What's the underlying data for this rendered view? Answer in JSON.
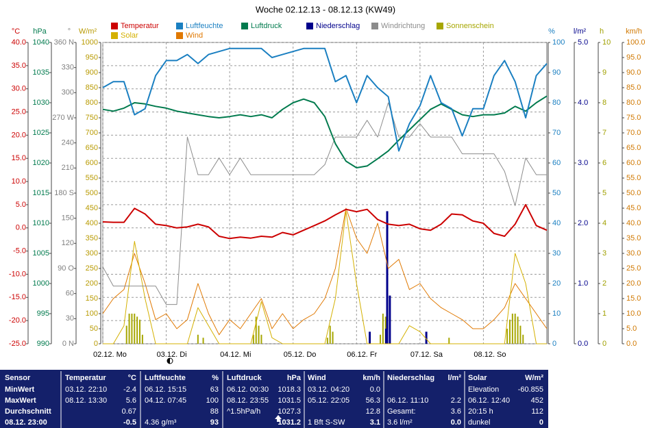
{
  "chart_data": {
    "type": "line",
    "title": "Woche 02.12.13 - 08.12.13 (KW49)",
    "xlim": [
      0,
      168
    ],
    "xticks": [
      {
        "value": 0,
        "label": "02.12. Mo"
      },
      {
        "value": 24,
        "label": "03.12. Di"
      },
      {
        "value": 48,
        "label": "04.12. Mi"
      },
      {
        "value": 72,
        "label": "05.12. Do"
      },
      {
        "value": 96,
        "label": "06.12. Fr"
      },
      {
        "value": 120,
        "label": "07.12. Sa"
      },
      {
        "value": 144,
        "label": "08.12. So"
      }
    ],
    "grid": true,
    "axes": [
      {
        "label": "°C",
        "color": "#cc0000",
        "side": "left",
        "ylim": [
          -25,
          40
        ],
        "yticks": [
          {
            "value": 40,
            "label": "40.0"
          },
          {
            "value": 35,
            "label": "35.0"
          },
          {
            "value": 30,
            "label": "30.0"
          },
          {
            "value": 25,
            "label": "25.0"
          },
          {
            "value": 20,
            "label": "20.0"
          },
          {
            "value": 15,
            "label": "15.0"
          },
          {
            "value": 10,
            "label": "10.0"
          },
          {
            "value": 5,
            "label": "5.0"
          },
          {
            "value": 0,
            "label": "0.0"
          },
          {
            "value": -5,
            "label": "-5.0"
          },
          {
            "value": -10,
            "label": "-10.0"
          },
          {
            "value": -15,
            "label": "-15.0"
          },
          {
            "value": -20,
            "label": "-20.0"
          },
          {
            "value": -25,
            "label": "-25.0"
          }
        ]
      },
      {
        "label": "hPa",
        "color": "#007a4d",
        "side": "left",
        "ylim": [
          990,
          1040
        ],
        "yticks": [
          1040,
          1035,
          1030,
          1025,
          1020,
          1015,
          1010,
          1005,
          1000,
          995,
          990
        ]
      },
      {
        "label": "°",
        "color": "#808080",
        "side": "left",
        "ylim": [
          0,
          360
        ],
        "yticks": [
          {
            "value": 360,
            "label": "360 N"
          },
          330,
          300,
          {
            "value": 270,
            "label": "270 W"
          },
          240,
          210,
          {
            "value": 180,
            "label": "180 S"
          },
          150,
          120,
          {
            "value": 90,
            "label": "90 O"
          },
          60,
          30,
          {
            "value": 0,
            "label": "0 N"
          }
        ]
      },
      {
        "label": "W/m²",
        "color": "#b89a00",
        "side": "left",
        "ylim": [
          0,
          1000
        ],
        "yticks": [
          1000,
          950,
          900,
          850,
          800,
          750,
          700,
          650,
          600,
          550,
          500,
          450,
          400,
          350,
          300,
          250,
          200,
          150,
          100,
          50,
          0
        ]
      },
      {
        "label": "%",
        "color": "#1a7fc1",
        "side": "right",
        "ylim": [
          0,
          100
        ],
        "yticks": [
          100,
          90,
          80,
          70,
          60,
          50,
          40,
          30,
          20,
          10,
          0
        ]
      },
      {
        "label": "l/m²",
        "color": "#00008b",
        "side": "right",
        "ylim": [
          0,
          5
        ],
        "yticks": [
          {
            "value": 5,
            "label": "5.0"
          },
          {
            "value": 4,
            "label": "4.0"
          },
          {
            "value": 3,
            "label": "3.0"
          },
          {
            "value": 2,
            "label": "2.0"
          },
          {
            "value": 1,
            "label": "1.0"
          },
          {
            "value": 0,
            "label": "0.0"
          }
        ]
      },
      {
        "label": "h",
        "color": "#a0a000",
        "side": "right",
        "ylim": [
          0,
          10
        ],
        "yticks": [
          10,
          9,
          8,
          7,
          6,
          5,
          4,
          3,
          2,
          1,
          0
        ]
      },
      {
        "label": "km/h",
        "color": "#d07800",
        "side": "right",
        "ylim": [
          0,
          100
        ],
        "yticks": [
          {
            "value": 100,
            "label": "100.0"
          },
          {
            "value": 95,
            "label": "95.0"
          },
          {
            "value": 90,
            "label": "90.0"
          },
          {
            "value": 85,
            "label": "85.0"
          },
          {
            "value": 80,
            "label": "80.0"
          },
          {
            "value": 75,
            "label": "75.0"
          },
          {
            "value": 70,
            "label": "70.0"
          },
          {
            "value": 65,
            "label": "65.0"
          },
          {
            "value": 60,
            "label": "60.0"
          },
          {
            "value": 55,
            "label": "55.0"
          },
          {
            "value": 50,
            "label": "50.0"
          },
          {
            "value": 45,
            "label": "45.0"
          },
          {
            "value": 40,
            "label": "40.0"
          },
          {
            "value": 35,
            "label": "35.0"
          },
          {
            "value": 30,
            "label": "30.0"
          },
          {
            "value": 25,
            "label": "25.0"
          },
          {
            "value": 20,
            "label": "20.0"
          },
          {
            "value": 15,
            "label": "15.0"
          },
          {
            "value": 10,
            "label": "10.0"
          },
          {
            "value": 5,
            "label": "5.0"
          },
          {
            "value": 0,
            "label": "0.0"
          }
        ]
      }
    ],
    "x": [
      0,
      4,
      8,
      12,
      16,
      20,
      24,
      28,
      32,
      36,
      40,
      44,
      48,
      52,
      56,
      60,
      64,
      68,
      72,
      76,
      80,
      84,
      88,
      92,
      96,
      100,
      104,
      108,
      112,
      116,
      120,
      124,
      128,
      132,
      136,
      140,
      144,
      148,
      152,
      156,
      160,
      164,
      168
    ],
    "series": [
      {
        "name": "Temperatur",
        "color": "#cc0000",
        "type": "line",
        "axis": 0,
        "values": [
          1.3,
          1.2,
          1.2,
          4.2,
          3.0,
          0.8,
          0.5,
          0.0,
          0.2,
          0.8,
          0.2,
          -1.8,
          -2.3,
          -2.0,
          -2.2,
          -1.8,
          -2.0,
          -1.0,
          -1.5,
          -0.5,
          0.5,
          1.5,
          2.8,
          4.0,
          3.5,
          4.0,
          1.8,
          0.8,
          0.5,
          0.8,
          -0.2,
          -0.5,
          0.8,
          3.0,
          2.8,
          1.5,
          1.0,
          -1.2,
          -1.8,
          0.8,
          5.0,
          0.5,
          -0.5
        ]
      },
      {
        "name": "Luftfeuchte",
        "color": "#1a7fc1",
        "type": "line",
        "axis": 4,
        "values": [
          85,
          87,
          87,
          76,
          78,
          89,
          94,
          94,
          96,
          93,
          96,
          97,
          98,
          98,
          98,
          98,
          95,
          96,
          97,
          98,
          98,
          98,
          87,
          89,
          80,
          89,
          85,
          82,
          64,
          73,
          79,
          89,
          80,
          78,
          69,
          78,
          78,
          89,
          94,
          87,
          75,
          89,
          93
        ]
      },
      {
        "name": "Luftdruck",
        "color": "#007a4d",
        "type": "line",
        "axis": 1,
        "values": [
          1028.9,
          1028.6,
          1029.1,
          1030.0,
          1029.8,
          1029.4,
          1029.1,
          1028.6,
          1028.3,
          1028.0,
          1027.7,
          1027.5,
          1027.7,
          1028.0,
          1027.7,
          1028.0,
          1027.5,
          1028.9,
          1030.0,
          1030.6,
          1030.0,
          1027.7,
          1023.2,
          1020.3,
          1019.2,
          1019.5,
          1020.7,
          1022.0,
          1023.8,
          1025.5,
          1027.2,
          1028.9,
          1029.8,
          1028.9,
          1028.0,
          1027.7,
          1028.0,
          1028.0,
          1028.3,
          1029.4,
          1028.6,
          1030.0,
          1031.1
        ]
      },
      {
        "name": "Niederschlag",
        "color": "#00008b",
        "type": "bar",
        "axis": 5,
        "x": [
          101,
          107.2,
          107.6,
          108.6,
          122.4
        ],
        "values": [
          0.2,
          0.25,
          2.2,
          0.8,
          0.2
        ]
      },
      {
        "name": "Windrichtung",
        "color": "#8c8c8c",
        "type": "line",
        "axis": 2,
        "values": [
          92,
          69,
          69,
          69,
          69,
          69,
          47,
          47,
          247,
          202,
          202,
          222,
          202,
          222,
          202,
          202,
          202,
          202,
          202,
          202,
          202,
          214,
          247,
          247,
          247,
          267,
          247,
          288,
          247,
          247,
          263,
          247,
          247,
          247,
          227,
          227,
          227,
          227,
          206,
          165,
          222,
          202,
          202
        ]
      },
      {
        "name": "Sonnenschein",
        "color": "#a6a600",
        "type": "bar",
        "axis": 6,
        "x": [
          9,
          10,
          11,
          12,
          13,
          14,
          15,
          36,
          38,
          57,
          58,
          59,
          60,
          85,
          86,
          87,
          105,
          106,
          107,
          131,
          153,
          154,
          155,
          156,
          157,
          158,
          159
        ],
        "values": [
          0.6,
          1.0,
          1.0,
          1.0,
          0.9,
          0.8,
          0.3,
          0.3,
          0.2,
          0.3,
          0.9,
          0.6,
          0.3,
          0.2,
          0.6,
          0.4,
          0.3,
          1.0,
          0.9,
          0.2,
          0.5,
          0.8,
          1.0,
          1.0,
          0.9,
          0.6,
          0.3
        ]
      },
      {
        "name": "Solar",
        "color": "#d4b000",
        "type": "line",
        "axis": 3,
        "values": [
          0,
          0,
          60,
          340,
          150,
          0,
          0,
          0,
          0,
          120,
          60,
          0,
          0,
          0,
          0,
          140,
          20,
          0,
          0,
          0,
          0,
          0,
          150,
          440,
          200,
          0,
          0,
          0,
          0,
          60,
          40,
          0,
          0,
          0,
          0,
          0,
          0,
          0,
          0,
          300,
          200,
          0,
          0
        ]
      },
      {
        "name": "Wind",
        "color": "#e07800",
        "type": "line",
        "axis": 7,
        "values": [
          10,
          15,
          18,
          30,
          20,
          8,
          10,
          5,
          8,
          20,
          10,
          3,
          8,
          5,
          10,
          15,
          5,
          10,
          5,
          8,
          10,
          15,
          25,
          45,
          35,
          30,
          40,
          25,
          28,
          18,
          20,
          15,
          12,
          10,
          8,
          5,
          5,
          8,
          12,
          20,
          15,
          10,
          5
        ]
      }
    ]
  },
  "table": {
    "columns": [
      {
        "header": "Sensor",
        "rows": [
          [
            "MinWert"
          ],
          [
            "MaxWert"
          ],
          [
            "Durchschnitt"
          ],
          [
            "08.12. 23:00"
          ]
        ]
      },
      {
        "header": "Temperatur",
        "unit": "°C",
        "rows": [
          [
            "03.12. 22:10",
            "-2.4"
          ],
          [
            "08.12. 13:30",
            "5.6"
          ],
          [
            "0.67"
          ],
          [
            "-0.5"
          ]
        ]
      },
      {
        "header": "Luftfeuchte",
        "unit": "%",
        "rows": [
          [
            "06.12. 15:15",
            "63"
          ],
          [
            "04.12. 07:45",
            "100"
          ],
          [
            "88"
          ],
          [
            "4.36 g/m³",
            "93"
          ]
        ]
      },
      {
        "header": "Luftdruck",
        "unit": "hPa",
        "rows": [
          [
            "06.12. 00:30",
            "1018.3"
          ],
          [
            "08.12. 23:55",
            "1031.5"
          ],
          [
            "^1.5hPa/h",
            "1027.3"
          ],
          [
            "1031.2"
          ]
        ]
      },
      {
        "header": "Wind",
        "unit": "km/h",
        "rows": [
          [
            "03.12. 04:20",
            "0.0"
          ],
          [
            "05.12. 22:05",
            "56.3"
          ],
          [
            "12.8"
          ],
          [
            "1 Bft S-SW",
            "3.1"
          ]
        ]
      },
      {
        "header": "Niederschlag",
        "unit": "l/m²",
        "rows": [
          null,
          [
            "06.12. 11:10",
            "2.2"
          ],
          [
            "Gesamt:",
            "3.6"
          ],
          [
            "3.6 l/m²",
            "0.0"
          ]
        ]
      },
      {
        "header": "Solar",
        "unit": "W/m²",
        "rows": [
          [
            "Elevation",
            "-60.855"
          ],
          [
            "06.12. 12:40",
            "452"
          ],
          [
            "20:15 h",
            "112"
          ],
          [
            "dunkel",
            "0"
          ]
        ]
      }
    ]
  }
}
